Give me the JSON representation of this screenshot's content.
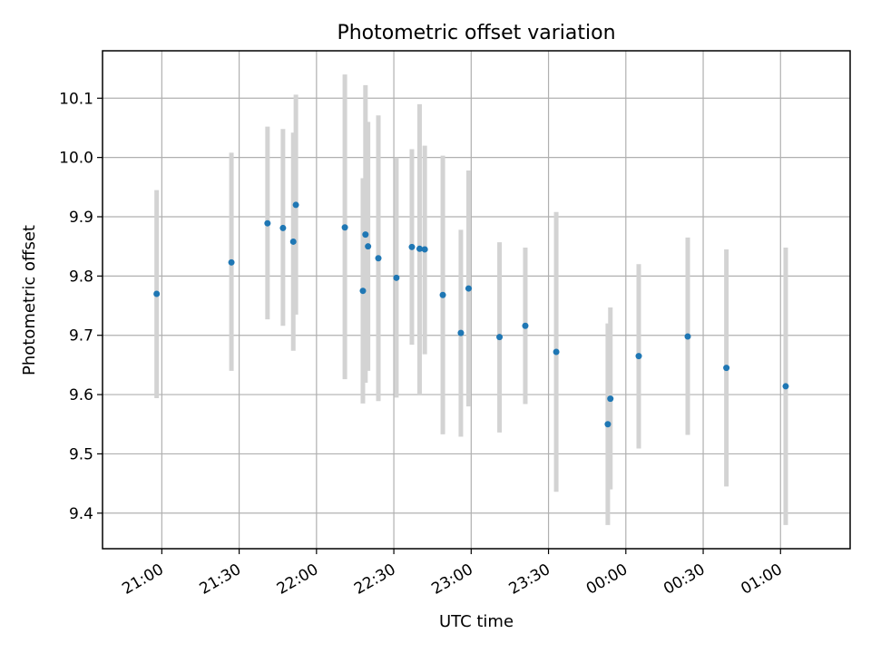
{
  "chart_data": {
    "type": "scatter",
    "title": "Photometric offset variation",
    "xlabel": "UTC time",
    "ylabel": "Photometric offset",
    "x_start": "20:37",
    "xlim": [
      "20:37",
      "01:27"
    ],
    "ylim": [
      9.34,
      10.18
    ],
    "x_ticks": [
      "21:00",
      "21:30",
      "22:00",
      "22:30",
      "23:00",
      "23:30",
      "00:00",
      "00:30",
      "01:00"
    ],
    "y_ticks": [
      "9.4",
      "9.5",
      "9.6",
      "9.7",
      "9.8",
      "9.9",
      "10.0",
      "10.1"
    ],
    "grid": true,
    "series": [
      {
        "marker_color": "#1f77b4",
        "errorbar_color": "#d3d3d3",
        "points": [
          {
            "time": "20:58",
            "y": 9.77,
            "ylow": 9.594,
            "yhigh": 9.945
          },
          {
            "time": "21:27",
            "y": 9.823,
            "ylow": 9.64,
            "yhigh": 10.008
          },
          {
            "time": "21:41",
            "y": 9.889,
            "ylow": 9.727,
            "yhigh": 10.052
          },
          {
            "time": "21:47",
            "y": 9.881,
            "ylow": 9.716,
            "yhigh": 10.048
          },
          {
            "time": "21:51",
            "y": 9.858,
            "ylow": 9.674,
            "yhigh": 10.042
          },
          {
            "time": "21:52",
            "y": 9.92,
            "ylow": 9.735,
            "yhigh": 10.106
          },
          {
            "time": "22:11",
            "y": 9.882,
            "ylow": 9.626,
            "yhigh": 10.14
          },
          {
            "time": "22:18",
            "y": 9.775,
            "ylow": 9.585,
            "yhigh": 9.965
          },
          {
            "time": "22:19",
            "y": 9.87,
            "ylow": 9.62,
            "yhigh": 10.122
          },
          {
            "time": "22:20",
            "y": 9.85,
            "ylow": 9.64,
            "yhigh": 10.06
          },
          {
            "time": "22:24",
            "y": 9.83,
            "ylow": 9.589,
            "yhigh": 10.071
          },
          {
            "time": "22:31",
            "y": 9.797,
            "ylow": 9.595,
            "yhigh": 10.0
          },
          {
            "time": "22:37",
            "y": 9.849,
            "ylow": 9.684,
            "yhigh": 10.014
          },
          {
            "time": "22:40",
            "y": 9.846,
            "ylow": 9.6,
            "yhigh": 10.09
          },
          {
            "time": "22:42",
            "y": 9.845,
            "ylow": 9.668,
            "yhigh": 10.02
          },
          {
            "time": "22:49",
            "y": 9.768,
            "ylow": 9.533,
            "yhigh": 10.003
          },
          {
            "time": "22:56",
            "y": 9.704,
            "ylow": 9.529,
            "yhigh": 9.878
          },
          {
            "time": "22:59",
            "y": 9.779,
            "ylow": 9.58,
            "yhigh": 9.978
          },
          {
            "time": "23:11",
            "y": 9.697,
            "ylow": 9.536,
            "yhigh": 9.857
          },
          {
            "time": "23:21",
            "y": 9.716,
            "ylow": 9.584,
            "yhigh": 9.848
          },
          {
            "time": "23:33",
            "y": 9.672,
            "ylow": 9.436,
            "yhigh": 9.908
          },
          {
            "time": "23:53",
            "y": 9.55,
            "ylow": 9.38,
            "yhigh": 9.72
          },
          {
            "time": "23:54",
            "y": 9.593,
            "ylow": 9.44,
            "yhigh": 9.747
          },
          {
            "time": "00:05",
            "y": 9.665,
            "ylow": 9.509,
            "yhigh": 9.82
          },
          {
            "time": "00:24",
            "y": 9.698,
            "ylow": 9.532,
            "yhigh": 9.865
          },
          {
            "time": "00:39",
            "y": 9.645,
            "ylow": 9.445,
            "yhigh": 9.845
          },
          {
            "time": "01:02",
            "y": 9.614,
            "ylow": 9.38,
            "yhigh": 9.848
          }
        ]
      }
    ]
  }
}
